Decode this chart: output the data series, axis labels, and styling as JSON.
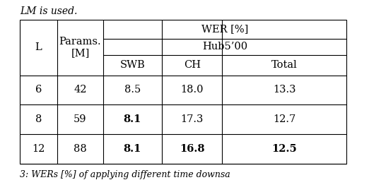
{
  "title_top": "LM is used.",
  "caption_bottom": "3: WERs [%] of applying different time downsa",
  "rows": [
    [
      "6",
      "42",
      "8.5",
      "18.0",
      "13.3",
      false,
      false,
      false
    ],
    [
      "8",
      "59",
      "8.1",
      "17.3",
      "12.7",
      true,
      false,
      false
    ],
    [
      "12",
      "88",
      "8.1",
      "16.8",
      "12.5",
      true,
      true,
      true
    ]
  ],
  "bg_color": "#ffffff",
  "text_color": "#000000",
  "font_size": 10.5,
  "lw": 0.8
}
